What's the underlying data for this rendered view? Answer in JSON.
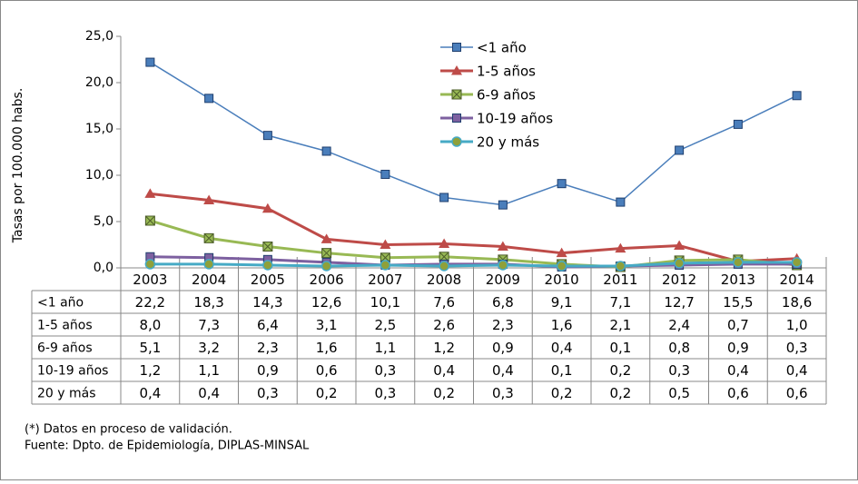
{
  "chart_data": {
    "type": "line",
    "y_label": "Tasas por 100.000 habs.",
    "categories": [
      "2003",
      "2004",
      "2005",
      "2006",
      "2007",
      "2008",
      "2009",
      "2010",
      "2011",
      "2012",
      "2013",
      "2014"
    ],
    "ylim": [
      0,
      25
    ],
    "yticks": [
      {
        "value": 0,
        "label": "0,0"
      },
      {
        "value": 5,
        "label": "5,0"
      },
      {
        "value": 10,
        "label": "10,0"
      },
      {
        "value": 15,
        "label": "15,0"
      },
      {
        "value": 20,
        "label": "20,0"
      },
      {
        "value": 25,
        "label": "25,0"
      }
    ],
    "series": [
      {
        "name": "<1 año",
        "color": "#4a7ebb",
        "marker": "square",
        "values": [
          22.2,
          18.3,
          14.3,
          12.6,
          10.1,
          7.6,
          6.8,
          9.1,
          7.1,
          12.7,
          15.5,
          18.6
        ],
        "value_labels": [
          "22,2",
          "18,3",
          "14,3",
          "12,6",
          "10,1",
          "7,6",
          "6,8",
          "9,1",
          "7,1",
          "12,7",
          "15,5",
          "18,6"
        ]
      },
      {
        "name": "1-5 años",
        "color": "#be4b48",
        "marker": "triangle",
        "values": [
          8.0,
          7.3,
          6.4,
          3.1,
          2.5,
          2.6,
          2.3,
          1.6,
          2.1,
          2.4,
          0.7,
          1.0
        ],
        "value_labels": [
          "8,0",
          "7,3",
          "6,4",
          "3,1",
          "2,5",
          "2,6",
          "2,3",
          "1,6",
          "2,1",
          "2,4",
          "0,7",
          "1,0"
        ]
      },
      {
        "name": "6-9 años",
        "color": "#98b954",
        "marker": "x",
        "values": [
          5.1,
          3.2,
          2.3,
          1.6,
          1.1,
          1.2,
          0.9,
          0.4,
          0.1,
          0.8,
          0.9,
          0.3
        ],
        "value_labels": [
          "5,1",
          "3,2",
          "2,3",
          "1,6",
          "1,1",
          "1,2",
          "0,9",
          "0,4",
          "0,1",
          "0,8",
          "0,9",
          "0,3"
        ]
      },
      {
        "name": "10-19 años",
        "color": "#7d60a0",
        "marker": "square",
        "values": [
          1.2,
          1.1,
          0.9,
          0.6,
          0.3,
          0.4,
          0.4,
          0.1,
          0.2,
          0.3,
          0.4,
          0.4
        ],
        "value_labels": [
          "1,2",
          "1,1",
          "0,9",
          "0,6",
          "0,3",
          "0,4",
          "0,4",
          "0,1",
          "0,2",
          "0,3",
          "0,4",
          "0,4"
        ]
      },
      {
        "name": "20 y más",
        "color": "#46aac5",
        "marker": "circle",
        "values": [
          0.4,
          0.4,
          0.3,
          0.2,
          0.3,
          0.2,
          0.3,
          0.2,
          0.2,
          0.5,
          0.6,
          0.6
        ],
        "value_labels": [
          "0,4",
          "0,4",
          "0,3",
          "0,2",
          "0,3",
          "0,2",
          "0,3",
          "0,2",
          "0,2",
          "0,5",
          "0,6",
          "0,6"
        ]
      }
    ],
    "notes": [
      "(*) Datos en proceso de validación.",
      "Fuente: Dpto. de Epidemiología, DIPLAS-MINSAL"
    ]
  }
}
